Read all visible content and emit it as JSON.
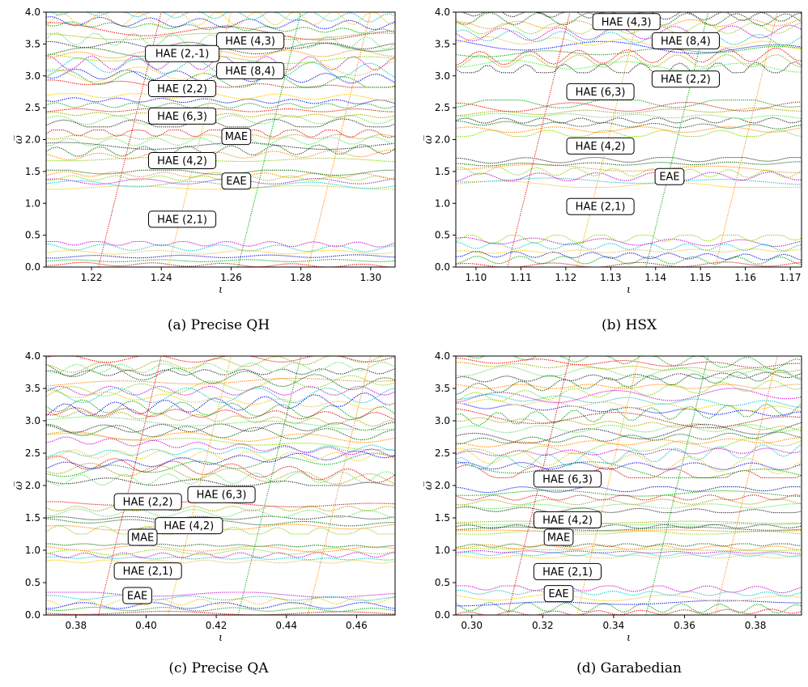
{
  "chart_data": [
    {
      "type": "scatter",
      "caption": "(a) Precise QH",
      "xlabel": "ι",
      "ylabel": "ω̅",
      "xlim": [
        1.207,
        1.307
      ],
      "ylim": [
        0,
        4
      ],
      "xticks": [
        "1.22",
        "1.24",
        "1.26",
        "1.28",
        "1.30"
      ],
      "xtick_values": [
        1.22,
        1.24,
        1.26,
        1.28,
        1.3
      ],
      "yticks": [
        "0.0",
        "0.5",
        "1.0",
        "1.5",
        "2.0",
        "2.5",
        "3.0",
        "3.5",
        "4.0"
      ],
      "ytick_values": [
        0,
        0.5,
        1,
        1.5,
        2,
        2.5,
        3,
        3.5,
        4
      ],
      "bands": [
        [
          0,
          0.4
        ],
        [
          1.22,
          1.52
        ],
        [
          1.65,
          2.15
        ],
        [
          2.2,
          2.72
        ],
        [
          2.82,
          4.0
        ]
      ],
      "gap_labels": [
        {
          "text": "HAE (4,3)",
          "x": 1.2655,
          "y": 3.55
        },
        {
          "text": "HAE (2,-1)",
          "x": 1.246,
          "y": 3.35
        },
        {
          "text": "HAE (8,4)",
          "x": 1.2655,
          "y": 3.08
        },
        {
          "text": "HAE (2,2)",
          "x": 1.246,
          "y": 2.8
        },
        {
          "text": "HAE (6,3)",
          "x": 1.246,
          "y": 2.37
        },
        {
          "text": "MAE",
          "x": 1.2615,
          "y": 2.05
        },
        {
          "text": "HAE (4,2)",
          "x": 1.246,
          "y": 1.67
        },
        {
          "text": "EAE",
          "x": 1.2615,
          "y": 1.35
        },
        {
          "text": "HAE (2,1)",
          "x": 1.246,
          "y": 0.75
        }
      ]
    },
    {
      "type": "scatter",
      "caption": "(b) HSX",
      "xlabel": "ι",
      "ylabel": "ω̅",
      "xlim": [
        1.0955,
        1.1725
      ],
      "ylim": [
        0,
        4
      ],
      "xticks": [
        "1.10",
        "1.11",
        "1.12",
        "1.13",
        "1.14",
        "1.15",
        "1.16",
        "1.17"
      ],
      "xtick_values": [
        1.1,
        1.11,
        1.12,
        1.13,
        1.14,
        1.15,
        1.16,
        1.17
      ],
      "yticks": [
        "0.0",
        "0.5",
        "1.0",
        "1.5",
        "2.0",
        "2.5",
        "3.0",
        "3.5",
        "4.0"
      ],
      "ytick_values": [
        0,
        0.5,
        1,
        1.5,
        2,
        2.5,
        3,
        3.5,
        4
      ],
      "bands": [
        [
          0,
          0.5
        ],
        [
          1.25,
          1.72
        ],
        [
          2.05,
          2.62
        ],
        [
          3.05,
          4.0
        ]
      ],
      "gap_labels": [
        {
          "text": "HAE (4,3)",
          "x": 1.1335,
          "y": 3.85
        },
        {
          "text": "HAE (8,4)",
          "x": 1.1467,
          "y": 3.55
        },
        {
          "text": "HAE (2,2)",
          "x": 1.1467,
          "y": 2.95
        },
        {
          "text": "HAE (6,3)",
          "x": 1.1277,
          "y": 2.75
        },
        {
          "text": "HAE (4,2)",
          "x": 1.1277,
          "y": 1.9
        },
        {
          "text": "EAE",
          "x": 1.1431,
          "y": 1.42
        },
        {
          "text": "HAE (2,1)",
          "x": 1.1277,
          "y": 0.95
        }
      ]
    },
    {
      "type": "scatter",
      "caption": "(c) Precise QA",
      "xlabel": "ι",
      "ylabel": "ω̅",
      "xlim": [
        0.3715,
        0.471
      ],
      "ylim": [
        0,
        4
      ],
      "xticks": [
        "0.38",
        "0.40",
        "0.42",
        "0.44",
        "0.46"
      ],
      "xtick_values": [
        0.38,
        0.4,
        0.42,
        0.44,
        0.46
      ],
      "yticks": [
        "0.0",
        "0.5",
        "1.0",
        "1.5",
        "2.0",
        "2.5",
        "3.0",
        "3.5",
        "4.0"
      ],
      "ytick_values": [
        0,
        0.5,
        1,
        1.5,
        2,
        2.5,
        3,
        3.5,
        4
      ],
      "bands": [
        [
          0,
          0.35
        ],
        [
          0.8,
          1.1
        ],
        [
          1.25,
          1.75
        ],
        [
          2.0,
          4.0
        ]
      ],
      "gap_labels": [
        {
          "text": "HAE (2,2)",
          "x": 0.4005,
          "y": 1.75
        },
        {
          "text": "HAE (6,3)",
          "x": 0.4215,
          "y": 1.86
        },
        {
          "text": "HAE (4,2)",
          "x": 0.4122,
          "y": 1.38
        },
        {
          "text": "MAE",
          "x": 0.399,
          "y": 1.2
        },
        {
          "text": "HAE (2,1)",
          "x": 0.4005,
          "y": 0.68
        },
        {
          "text": "EAE",
          "x": 0.3975,
          "y": 0.3
        }
      ]
    },
    {
      "type": "scatter",
      "caption": "(d) Garabedian",
      "xlabel": "ι",
      "ylabel": "ω̅",
      "xlim": [
        0.2955,
        0.393
      ],
      "ylim": [
        0,
        4
      ],
      "xticks": [
        "0.30",
        "0.32",
        "0.34",
        "0.36",
        "0.38"
      ],
      "xtick_values": [
        0.3,
        0.32,
        0.34,
        0.36,
        0.38
      ],
      "yticks": [
        "0.0",
        "0.5",
        "1.0",
        "1.5",
        "2.0",
        "2.5",
        "3.0",
        "3.5",
        "4.0"
      ],
      "ytick_values": [
        0,
        0.5,
        1,
        1.5,
        2,
        2.5,
        3,
        3.5,
        4
      ],
      "bands": [
        [
          0,
          0.45
        ],
        [
          0.88,
          1.1
        ],
        [
          1.25,
          1.45
        ],
        [
          1.58,
          1.98
        ],
        [
          2.12,
          4.0
        ]
      ],
      "gap_labels": [
        {
          "text": "HAE (6,3)",
          "x": 0.327,
          "y": 2.1
        },
        {
          "text": "HAE (4,2)",
          "x": 0.327,
          "y": 1.47
        },
        {
          "text": "MAE",
          "x": 0.3245,
          "y": 1.2
        },
        {
          "text": "HAE (2,1)",
          "x": 0.327,
          "y": 0.67
        },
        {
          "text": "EAE",
          "x": 0.3245,
          "y": 0.33
        }
      ]
    }
  ]
}
